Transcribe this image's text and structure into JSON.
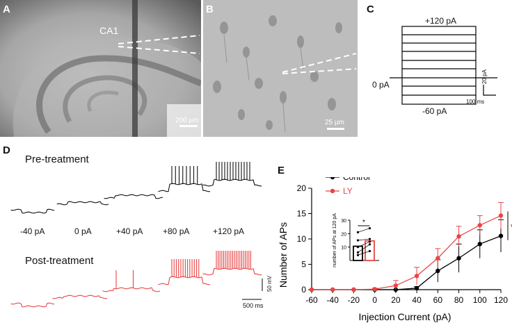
{
  "panels": {
    "A": {
      "letter": "A",
      "region_label": "CA1",
      "scalebar_label": "200 µm"
    },
    "B": {
      "letter": "B",
      "scalebar_label": "25 µm"
    },
    "C": {
      "letter": "C",
      "top_label": "+120 pA",
      "left_label": "0 pA",
      "bottom_label": "-60 pA",
      "scale_y_label": "20 pA",
      "scale_x_label": "100 ms"
    },
    "D": {
      "letter": "D",
      "pre_title": "Pre-treatment",
      "post_title": "Post-treatment",
      "step_labels": [
        "-40 pA",
        "0 pA",
        "+40 pA",
        "+80 pA",
        "+120 pA"
      ],
      "scale_y_label": "50 mV",
      "scale_x_label": "500 ms",
      "pre_color": "#111111",
      "post_color": "#e84545"
    },
    "E": {
      "letter": "E"
    }
  },
  "chart_data": {
    "type": "line",
    "xlabel": "Injection Current (pA)",
    "ylabel": "Number of APs",
    "x": [
      -60,
      -40,
      -20,
      0,
      20,
      40,
      60,
      80,
      100,
      120
    ],
    "xlim": [
      -60,
      120
    ],
    "ylim": [
      0,
      20
    ],
    "yticks": [
      0,
      5,
      10,
      15,
      20
    ],
    "legend_position": "top-left",
    "significance_marker": "*",
    "series": [
      {
        "name": "Control",
        "color": "#000000",
        "values": [
          0,
          0,
          0,
          0,
          0,
          0.3,
          3.7,
          6.2,
          9.0,
          10.6
        ],
        "error": [
          0,
          0,
          0,
          0,
          0,
          0.3,
          2.2,
          2.8,
          2.8,
          3.2
        ]
      },
      {
        "name": "LY",
        "color": "#e84545",
        "values": [
          0,
          0,
          0,
          0.1,
          0.8,
          2.7,
          6.2,
          10.5,
          12.7,
          14.6
        ],
        "error": [
          0,
          0,
          0,
          0.2,
          1.0,
          1.7,
          1.9,
          2.0,
          1.9,
          2.6
        ]
      }
    ],
    "inset": {
      "type": "bar",
      "ylabel": "number of APs at 120 pA",
      "ylim": [
        0,
        30
      ],
      "yticks": [
        10,
        20,
        30
      ],
      "categories": [
        "Control",
        "LY"
      ],
      "values": [
        10.6,
        14.6
      ],
      "colors": [
        "#000000",
        "#e84545"
      ],
      "paired_points": [
        [
          4,
          7
        ],
        [
          6,
          12
        ],
        [
          10,
          14
        ],
        [
          15,
          16
        ],
        [
          21,
          24
        ]
      ],
      "significance_marker": "*"
    }
  }
}
